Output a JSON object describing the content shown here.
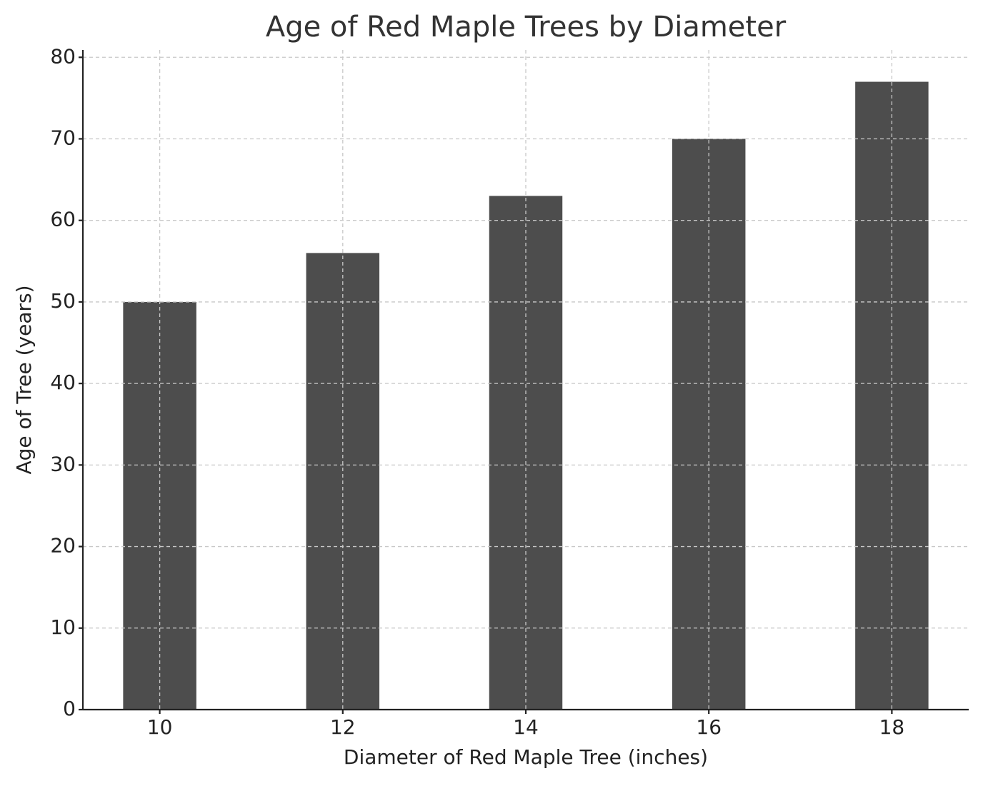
{
  "chart_data": {
    "type": "bar",
    "title": "Age of Red Maple Trees by Diameter",
    "x_label": "Diameter of Red Maple Tree (inches)",
    "y_label": "Age of Tree (years)",
    "x": [
      10,
      12,
      14,
      16,
      18
    ],
    "values": [
      50,
      56,
      63,
      70,
      77
    ],
    "color": "#4d4d4d",
    "xlim": [
      9.16,
      18.84
    ],
    "xticks": [
      10,
      12,
      14,
      16,
      18
    ],
    "ylim": [
      0,
      80.9
    ],
    "yticks": [
      0,
      10,
      20,
      30,
      40,
      50,
      60,
      70,
      80
    ],
    "grid": true
  }
}
